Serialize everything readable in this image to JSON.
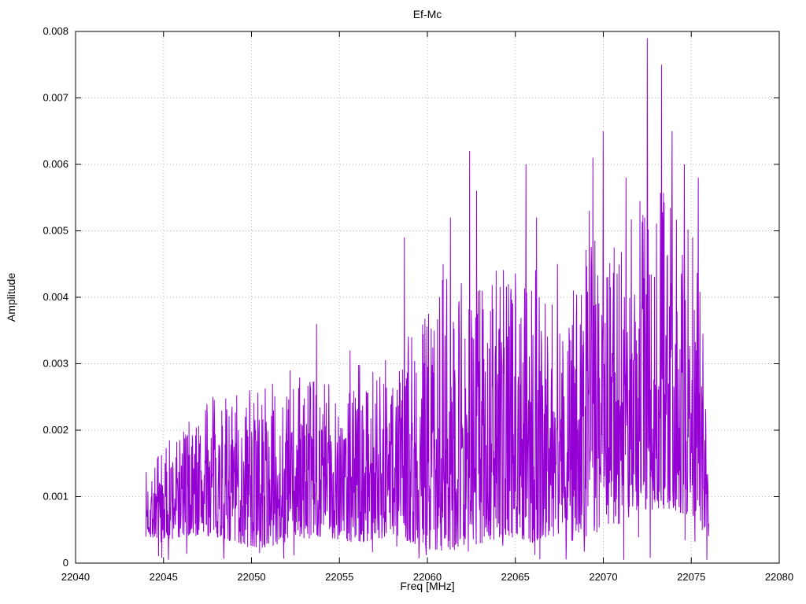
{
  "window": {
    "title": "Ef-Mc"
  },
  "chart_data": {
    "type": "line",
    "title": "Ef-Mc",
    "xlabel": "Freq [MHz]",
    "ylabel": "Amplitude",
    "xlim": [
      22040,
      22080
    ],
    "ylim": [
      0,
      0.008
    ],
    "x_ticks": [
      22040,
      22045,
      22050,
      22055,
      22060,
      22065,
      22070,
      22075,
      22080
    ],
    "x_tick_labels": [
      "22040",
      "22045",
      "22050",
      "22055",
      "22060",
      "22065",
      "22070",
      "22075",
      "22080"
    ],
    "y_ticks": [
      0,
      0.001,
      0.002,
      0.003,
      0.004,
      0.005,
      0.006,
      0.007,
      0.008
    ],
    "y_tick_labels": [
      "0",
      "0.001",
      "0.002",
      "0.003",
      "0.004",
      "0.005",
      "0.006",
      "0.007",
      "0.008"
    ],
    "grid": true,
    "legend": "none",
    "line_color": "#9400d3",
    "grid_color": "#b8b8b8",
    "border_color": "#000000",
    "background": "#ffffff",
    "data_range": [
      22044.0,
      22076.0
    ],
    "samples": 1700,
    "seed": 7,
    "noise_envelope": [
      [
        22044.0,
        0.0004,
        0.0014
      ],
      [
        22045.0,
        0.0003,
        0.0018
      ],
      [
        22046.5,
        0.0004,
        0.0022
      ],
      [
        22048.0,
        0.0004,
        0.0025
      ],
      [
        22050.0,
        0.0002,
        0.0026
      ],
      [
        22052.0,
        0.0003,
        0.0028
      ],
      [
        22054.0,
        0.0004,
        0.0028
      ],
      [
        22056.0,
        0.0003,
        0.003
      ],
      [
        22058.0,
        0.0004,
        0.0032
      ],
      [
        22059.0,
        0.0003,
        0.0035
      ],
      [
        22060.0,
        0.0002,
        0.0038
      ],
      [
        22061.0,
        0.0002,
        0.0045
      ],
      [
        22062.0,
        0.0002,
        0.0048
      ],
      [
        22063.0,
        0.0003,
        0.0042
      ],
      [
        22064.0,
        0.0003,
        0.0044
      ],
      [
        22065.0,
        0.0004,
        0.0045
      ],
      [
        22066.0,
        0.0003,
        0.0046
      ],
      [
        22067.0,
        0.0004,
        0.0042
      ],
      [
        22068.0,
        0.0003,
        0.0041
      ],
      [
        22069.0,
        0.0004,
        0.0048
      ],
      [
        22070.0,
        0.0005,
        0.0052
      ],
      [
        22071.0,
        0.0006,
        0.0048
      ],
      [
        22072.0,
        0.0008,
        0.0055
      ],
      [
        22073.0,
        0.0008,
        0.0058
      ],
      [
        22074.0,
        0.0008,
        0.0055
      ],
      [
        22075.0,
        0.0007,
        0.0052
      ],
      [
        22075.6,
        0.0005,
        0.004
      ],
      [
        22076.0,
        0.0004,
        0.0009
      ]
    ],
    "notable_peaks": [
      [
        22047.8,
        0.0025
      ],
      [
        22049.9,
        0.0026
      ],
      [
        22052.2,
        0.0029
      ],
      [
        22053.7,
        0.0036
      ],
      [
        22055.6,
        0.0032
      ],
      [
        22057.3,
        0.0028
      ],
      [
        22058.7,
        0.0049
      ],
      [
        22059.1,
        0.0034
      ],
      [
        22060.9,
        0.0045
      ],
      [
        22061.3,
        0.0052
      ],
      [
        22062.4,
        0.0062
      ],
      [
        22062.8,
        0.0056
      ],
      [
        22063.9,
        0.0044
      ],
      [
        22064.6,
        0.0042
      ],
      [
        22065.6,
        0.006
      ],
      [
        22066.2,
        0.0052
      ],
      [
        22067.4,
        0.0045
      ],
      [
        22068.3,
        0.0041
      ],
      [
        22069.2,
        0.0053
      ],
      [
        22069.4,
        0.0061
      ],
      [
        22070.0,
        0.0065
      ],
      [
        22071.3,
        0.0058
      ],
      [
        22072.5,
        0.0079
      ],
      [
        22073.3,
        0.0075
      ],
      [
        22073.9,
        0.0065
      ],
      [
        22074.6,
        0.006
      ],
      [
        22075.4,
        0.0058
      ]
    ]
  }
}
